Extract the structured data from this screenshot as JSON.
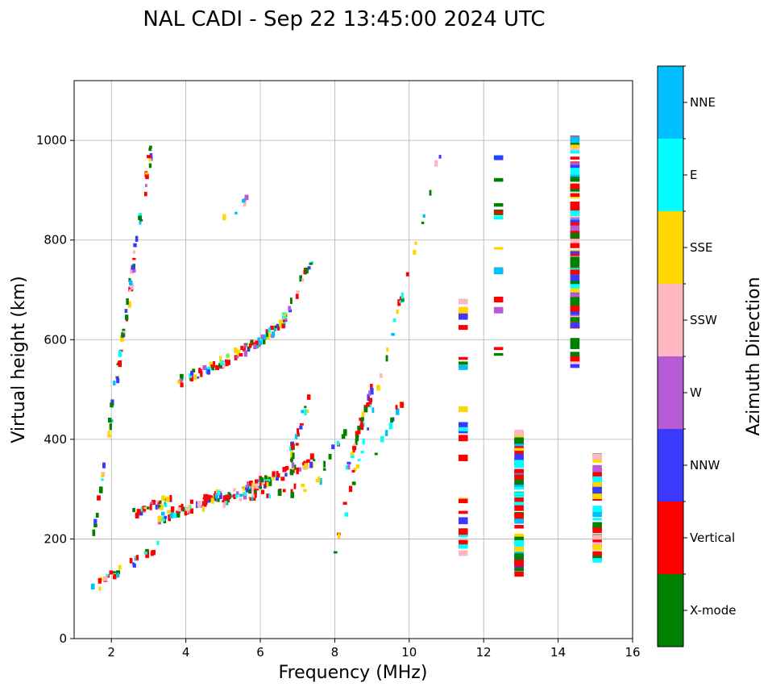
{
  "chart_data": {
    "type": "scatter",
    "title": "NAL CADI - Sep 22 13:45:00 2024 UTC",
    "xlabel": "Frequency (MHz)",
    "ylabel": "Virtual height (km)",
    "xlim": [
      1,
      16
    ],
    "ylim": [
      0,
      1120
    ],
    "xticks": [
      2,
      4,
      6,
      8,
      10,
      12,
      14,
      16
    ],
    "yticks": [
      0,
      200,
      400,
      600,
      800,
      1000
    ],
    "grid": true,
    "colorbar": {
      "title": "Azimuth Direction",
      "categories": [
        {
          "label": "X-mode",
          "color": "#008000"
        },
        {
          "label": "Vertical",
          "color": "#ff0000"
        },
        {
          "label": "NNW",
          "color": "#3a3aff"
        },
        {
          "label": "W",
          "color": "#b65ad6"
        },
        {
          "label": "SSW",
          "color": "#ffb6c1"
        },
        {
          "label": "SSE",
          "color": "#ffd700"
        },
        {
          "label": "E",
          "color": "#00ffff"
        },
        {
          "label": "NNE",
          "color": "#00bfff"
        }
      ]
    },
    "segments": [
      {
        "x0": 1.5,
        "x1": 3.3,
        "y0": 100,
        "y1": 190,
        "n": 30
      },
      {
        "x0": 2.5,
        "x1": 3.6,
        "y0": 245,
        "y1": 280,
        "n": 30
      },
      {
        "x0": 3.3,
        "x1": 5.0,
        "y0": 240,
        "y1": 290,
        "n": 60
      },
      {
        "x0": 5.0,
        "x1": 6.2,
        "y0": 280,
        "y1": 320,
        "n": 45
      },
      {
        "x0": 6.0,
        "x1": 7.5,
        "y0": 310,
        "y1": 360,
        "n": 40
      },
      {
        "x0": 6.8,
        "x1": 7.3,
        "y0": 360,
        "y1": 480,
        "n": 20
      },
      {
        "x0": 4.3,
        "x1": 6.2,
        "y0": 260,
        "y1": 305,
        "n": 20
      },
      {
        "x0": 5.5,
        "x1": 7.3,
        "y0": 285,
        "y1": 300,
        "n": 18
      },
      {
        "x0": 3.8,
        "x1": 5.0,
        "y0": 515,
        "y1": 555,
        "n": 35
      },
      {
        "x0": 5.0,
        "x1": 6.0,
        "y0": 555,
        "y1": 600,
        "n": 35
      },
      {
        "x0": 6.0,
        "x1": 6.8,
        "y0": 595,
        "y1": 650,
        "n": 30
      },
      {
        "x0": 6.6,
        "x1": 7.4,
        "y0": 640,
        "y1": 760,
        "n": 15
      },
      {
        "x0": 5.0,
        "x1": 5.8,
        "y0": 840,
        "y1": 885,
        "n": 6
      },
      {
        "x0": 7.5,
        "x1": 8.3,
        "y0": 310,
        "y1": 420,
        "n": 12
      },
      {
        "x0": 8.3,
        "x1": 9.0,
        "y0": 330,
        "y1": 500,
        "n": 30
      },
      {
        "x0": 9.0,
        "x1": 9.8,
        "y0": 360,
        "y1": 480,
        "n": 10
      },
      {
        "x0": 1.5,
        "x1": 3.1,
        "y0": 200,
        "y1": 1000,
        "n": 70
      },
      {
        "x0": 8.0,
        "x1": 11.0,
        "y0": 180,
        "y1": 1020,
        "n": 35
      }
    ],
    "columns": [
      {
        "x": 11.45,
        "y0": 170,
        "y1": 720,
        "n": 28
      },
      {
        "x": 12.4,
        "y0": 520,
        "y1": 985,
        "n": 14
      },
      {
        "x": 12.95,
        "y0": 115,
        "y1": 415,
        "n": 70
      },
      {
        "x": 14.45,
        "y0": 535,
        "y1": 1015,
        "n": 90
      },
      {
        "x": 15.05,
        "y0": 155,
        "y1": 370,
        "n": 45
      }
    ]
  }
}
